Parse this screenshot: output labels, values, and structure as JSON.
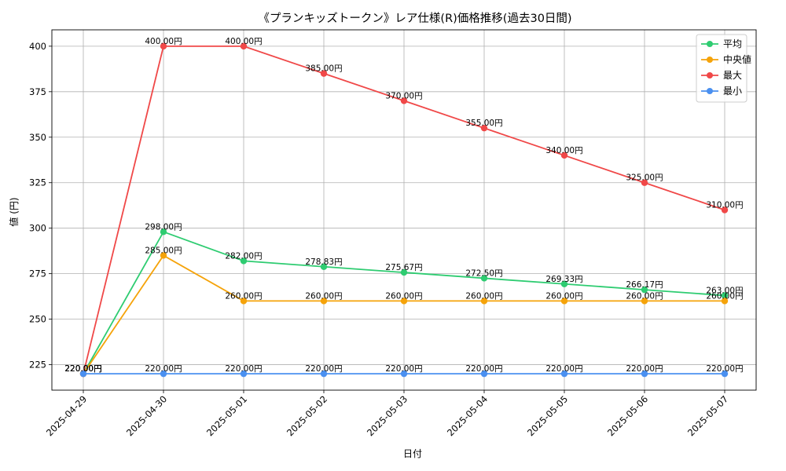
{
  "chart_data": {
    "type": "line",
    "title": "《プランキッズトークン》レア仕様(R)価格推移(過去30日間)",
    "xlabel": "日付",
    "ylabel": "値 (円)",
    "categories": [
      "2025-04-29",
      "2025-04-30",
      "2025-05-01",
      "2025-05-02",
      "2025-05-03",
      "2025-05-04",
      "2025-05-05",
      "2025-05-06",
      "2025-05-07"
    ],
    "ylim": [
      211,
      409
    ],
    "yticks": [
      225,
      250,
      275,
      300,
      325,
      350,
      375,
      400
    ],
    "grid": true,
    "legend_position": "top-right",
    "series": [
      {
        "name": "平均",
        "color": "#2ecc71",
        "values": [
          220.0,
          298.0,
          282.0,
          278.83,
          275.67,
          272.5,
          269.33,
          266.17,
          263.0
        ]
      },
      {
        "name": "中央値",
        "color": "#f5a30a",
        "values": [
          220.0,
          285.0,
          260.0,
          260.0,
          260.0,
          260.0,
          260.0,
          260.0,
          260.0
        ]
      },
      {
        "name": "最大",
        "color": "#f04848",
        "values": [
          220.0,
          400.0,
          400.0,
          385.0,
          370.0,
          355.0,
          340.0,
          325.0,
          310.0
        ]
      },
      {
        "name": "最小",
        "color": "#4a90f0",
        "values": [
          220.0,
          220.0,
          220.0,
          220.0,
          220.0,
          220.0,
          220.0,
          220.0,
          220.0
        ]
      }
    ],
    "value_suffix": "円"
  }
}
